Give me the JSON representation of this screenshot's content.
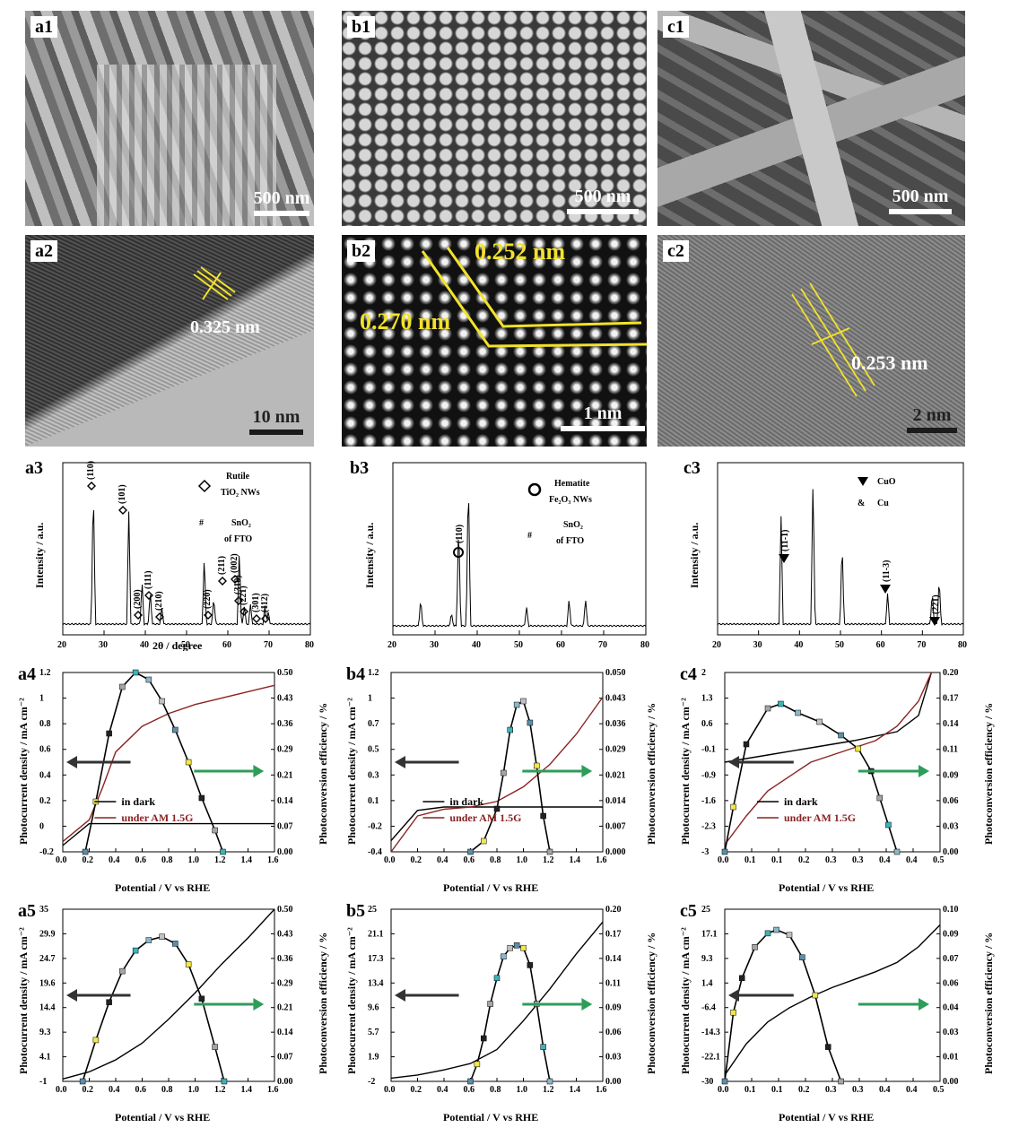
{
  "row1": [
    {
      "tag": "a1",
      "scale": "500 nm"
    },
    {
      "tag": "b1",
      "scale": "500 nm"
    },
    {
      "tag": "c1",
      "scale": "500 nm"
    }
  ],
  "row2": [
    {
      "tag": "a2",
      "scale": "10 nm",
      "d": "0.325 nm"
    },
    {
      "tag": "b2",
      "scale": "1 nm",
      "d1": "0.252 nm",
      "d2": "0.270 nm"
    },
    {
      "tag": "c2",
      "scale": "2 nm",
      "d": "0.253 nm"
    }
  ],
  "xrd": {
    "ylabel": "Intensity / a.u.",
    "xlabel": "2θ / degree",
    "xticks": [
      "20",
      "30",
      "40",
      "50",
      "60",
      "70",
      "80"
    ],
    "a3": {
      "tag": "a3",
      "leg1": "Rutile",
      "leg1b": "TiO₂ NWs",
      "leg2": "#",
      "leg2a": "SnO₂",
      "leg2b": "of FTO",
      "peaks": [
        "(110)",
        "(101)",
        "(200)",
        "(111)",
        "(210)",
        "(211)",
        "(220)",
        "(002)",
        "(310)",
        "(221)",
        "(301)",
        "(112)"
      ]
    },
    "b3": {
      "tag": "b3",
      "leg1": "Hematite",
      "leg1b": "Fe₂O₃ NWs",
      "leg2": "#",
      "leg2a": "SnO₂",
      "leg2b": "of FTO",
      "peaks": [
        "(110)"
      ]
    },
    "c3": {
      "tag": "c3",
      "leg1": "CuO",
      "leg2": "Cu",
      "peaks": [
        "(11-1)",
        "(11-3)",
        "(221)"
      ]
    }
  },
  "jv": {
    "ylabel_left": "Photocurrent density / mA cm⁻²",
    "ylabel_right": "Photoconversion efficiency / %",
    "xlabel": "Potential / V vs RHE",
    "legend_dark": "in dark",
    "legend_light": "under AM 1.5G"
  },
  "chart_data": [
    {
      "type": "line",
      "title": "a4",
      "xlim": [
        0,
        1.6
      ],
      "ylim": [
        -0.2,
        1.2
      ],
      "y2lim": [
        0,
        0.5
      ],
      "series": [
        {
          "name": "in dark",
          "x": [
            0,
            0.2,
            0.4,
            0.8,
            1.2,
            1.6
          ],
          "y": [
            -0.15,
            0.02,
            0.02,
            0.02,
            0.02,
            0.02
          ]
        },
        {
          "name": "under AM 1.5G",
          "x": [
            0,
            0.2,
            0.3,
            0.4,
            0.6,
            0.8,
            1.0,
            1.2,
            1.4,
            1.6
          ],
          "y": [
            -0.12,
            0.05,
            0.3,
            0.58,
            0.78,
            0.88,
            0.95,
            1.0,
            1.05,
            1.1
          ]
        },
        {
          "name": "efficiency",
          "x": [
            0.17,
            0.25,
            0.35,
            0.45,
            0.55,
            0.65,
            0.75,
            0.85,
            0.95,
            1.05,
            1.15,
            1.21
          ],
          "y": [
            0.0,
            0.14,
            0.33,
            0.46,
            0.5,
            0.48,
            0.42,
            0.34,
            0.25,
            0.15,
            0.06,
            0.0
          ]
        }
      ]
    },
    {
      "type": "line",
      "title": "b4",
      "xlim": [
        0,
        1.6
      ],
      "ylim": [
        -0.4,
        1.2
      ],
      "y2lim": [
        0,
        0.05
      ],
      "series": [
        {
          "name": "in dark",
          "x": [
            0,
            0.2,
            0.4,
            0.8,
            1.2,
            1.6
          ],
          "y": [
            -0.3,
            -0.03,
            0,
            0,
            0,
            0
          ]
        },
        {
          "name": "under AM 1.5G",
          "x": [
            0,
            0.2,
            0.4,
            0.6,
            0.8,
            1.0,
            1.2,
            1.4,
            1.6
          ],
          "y": [
            -0.4,
            -0.08,
            -0.02,
            0.0,
            0.05,
            0.18,
            0.38,
            0.65,
            0.98
          ]
        },
        {
          "name": "efficiency",
          "x": [
            0.6,
            0.7,
            0.8,
            0.85,
            0.9,
            0.95,
            1.0,
            1.05,
            1.1,
            1.15,
            1.2
          ],
          "y": [
            0.0,
            0.003,
            0.012,
            0.022,
            0.034,
            0.041,
            0.042,
            0.036,
            0.024,
            0.01,
            0.0
          ]
        }
      ]
    },
    {
      "type": "line",
      "title": "c4",
      "xlim": [
        0,
        0.5
      ],
      "ylim": [
        -3,
        2
      ],
      "y2lim": [
        0,
        0.2
      ],
      "series": [
        {
          "name": "in dark",
          "x": [
            0,
            0.1,
            0.2,
            0.3,
            0.4,
            0.45,
            0.48
          ],
          "y": [
            -0.5,
            -0.3,
            -0.1,
            0.1,
            0.35,
            0.8,
            2.0
          ]
        },
        {
          "name": "under AM 1.5G",
          "x": [
            0,
            0.05,
            0.1,
            0.2,
            0.3,
            0.35,
            0.4,
            0.45,
            0.48
          ],
          "y": [
            -2.8,
            -2.0,
            -1.3,
            -0.5,
            -0.1,
            0.1,
            0.5,
            1.2,
            2.0
          ]
        },
        {
          "name": "efficiency",
          "x": [
            0.0,
            0.02,
            0.05,
            0.1,
            0.13,
            0.17,
            0.22,
            0.27,
            0.31,
            0.34,
            0.36,
            0.38,
            0.4
          ],
          "y": [
            0.0,
            0.05,
            0.12,
            0.16,
            0.165,
            0.155,
            0.145,
            0.13,
            0.115,
            0.09,
            0.06,
            0.03,
            0.0
          ]
        }
      ]
    },
    {
      "type": "line",
      "title": "a5",
      "xlim": [
        0,
        1.6
      ],
      "ylim": [
        -1,
        35
      ],
      "y2lim": [
        0,
        0.5
      ],
      "series": [
        {
          "name": "current",
          "x": [
            0,
            0.2,
            0.4,
            0.6,
            0.8,
            1.0,
            1.2,
            1.4,
            1.6
          ],
          "y": [
            -0.5,
            1.0,
            3.5,
            7.0,
            12.0,
            17.5,
            23.5,
            29.0,
            35.0
          ]
        },
        {
          "name": "efficiency",
          "x": [
            0.15,
            0.25,
            0.35,
            0.45,
            0.55,
            0.65,
            0.75,
            0.85,
            0.95,
            1.05,
            1.15,
            1.22
          ],
          "y": [
            0.0,
            0.12,
            0.23,
            0.32,
            0.38,
            0.41,
            0.42,
            0.4,
            0.34,
            0.24,
            0.1,
            0.0
          ]
        }
      ]
    },
    {
      "type": "line",
      "title": "b5",
      "xlim": [
        0,
        1.6
      ],
      "ylim": [
        -2,
        25
      ],
      "y2lim": [
        0,
        0.2
      ],
      "series": [
        {
          "name": "current",
          "x": [
            0,
            0.2,
            0.4,
            0.6,
            0.8,
            1.0,
            1.2,
            1.4,
            1.6
          ],
          "y": [
            -1.5,
            -1.0,
            -0.2,
            0.8,
            3.0,
            7.5,
            12.5,
            18.0,
            23.0
          ]
        },
        {
          "name": "efficiency",
          "x": [
            0.6,
            0.65,
            0.7,
            0.75,
            0.8,
            0.85,
            0.9,
            0.95,
            1.0,
            1.05,
            1.1,
            1.15,
            1.2
          ],
          "y": [
            0.0,
            0.02,
            0.05,
            0.09,
            0.12,
            0.145,
            0.155,
            0.158,
            0.155,
            0.135,
            0.09,
            0.04,
            0.0
          ]
        }
      ]
    },
    {
      "type": "line",
      "title": "c5",
      "xlim": [
        0,
        0.5
      ],
      "ylim": [
        -30,
        25
      ],
      "y2lim": [
        0,
        0.1
      ],
      "series": [
        {
          "name": "current",
          "x": [
            0,
            0.05,
            0.1,
            0.15,
            0.2,
            0.25,
            0.3,
            0.35,
            0.4,
            0.45,
            0.5
          ],
          "y": [
            -28,
            -18,
            -11,
            -6.5,
            -3,
            0,
            2.5,
            5,
            8,
            13,
            20
          ]
        },
        {
          "name": "efficiency",
          "x": [
            0.0,
            0.02,
            0.04,
            0.07,
            0.1,
            0.12,
            0.15,
            0.18,
            0.21,
            0.24,
            0.27
          ],
          "y": [
            0.0,
            0.04,
            0.06,
            0.078,
            0.086,
            0.088,
            0.085,
            0.072,
            0.05,
            0.02,
            0.0
          ]
        }
      ]
    }
  ]
}
